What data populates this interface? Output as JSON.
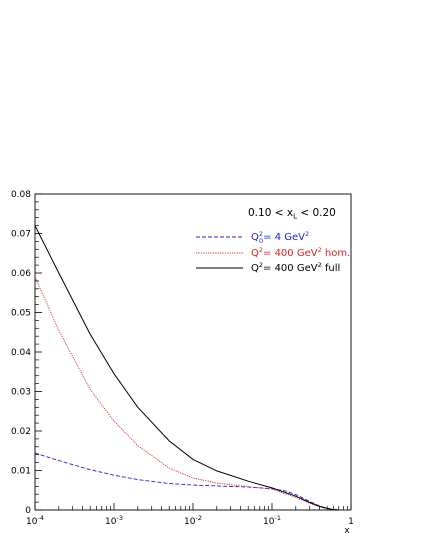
{
  "chart_data": {
    "type": "line",
    "header": {
      "prefix": "0.10 < x",
      "sub": "L",
      "suffix": " < 0.20"
    },
    "xlabel": "x",
    "ylabel": "",
    "x_scale": "log",
    "xlim": [
      0.0001,
      1
    ],
    "ylim": [
      0,
      0.08
    ],
    "grid": false,
    "legend_position": "top-right",
    "x_ticks": [
      {
        "value": 0.0001,
        "base": "10",
        "exp": "-4"
      },
      {
        "value": 0.001,
        "base": "10",
        "exp": "-3"
      },
      {
        "value": 0.01,
        "base": "10",
        "exp": "-2"
      },
      {
        "value": 0.1,
        "base": "10",
        "exp": "-1"
      },
      {
        "value": 1,
        "base": "1",
        "exp": ""
      }
    ],
    "y_ticks": [
      {
        "value": 0,
        "label": "0"
      },
      {
        "value": 0.01,
        "label": "0.01"
      },
      {
        "value": 0.02,
        "label": "0.02"
      },
      {
        "value": 0.03,
        "label": "0.03"
      },
      {
        "value": 0.04,
        "label": "0.04"
      },
      {
        "value": 0.05,
        "label": "0.05"
      },
      {
        "value": 0.06,
        "label": "0.06"
      },
      {
        "value": 0.07,
        "label": "0.07"
      },
      {
        "value": 0.08,
        "label": "0.08"
      }
    ],
    "series": [
      {
        "legend": {
          "q": "Q",
          "qsup": "2",
          "qsub": "0",
          "rest": "= 4 GeV",
          "restsup": "2",
          "tail": ""
        },
        "color": "#2222dd",
        "style": "dashed",
        "x": [
          0.0001,
          0.0002,
          0.0005,
          0.001,
          0.002,
          0.005,
          0.01,
          0.02,
          0.05,
          0.1,
          0.15,
          0.2,
          0.3,
          0.4,
          0.5,
          0.6,
          0.7
        ],
        "y": [
          0.0144,
          0.0125,
          0.0102,
          0.0088,
          0.0077,
          0.0067,
          0.0063,
          0.0061,
          0.0058,
          0.0054,
          0.0048,
          0.0039,
          0.0022,
          0.001,
          0.0004,
          0.0001,
          0.0
        ]
      },
      {
        "legend": {
          "q": "Q",
          "qsup": "2",
          "qsub": "",
          "rest": "= 400 GeV",
          "restsup": "2",
          "tail": " hom."
        },
        "color": "#dd2222",
        "style": "dotted",
        "x": [
          0.0001,
          0.0002,
          0.0005,
          0.001,
          0.002,
          0.005,
          0.01,
          0.02,
          0.05,
          0.1,
          0.2,
          0.3,
          0.4,
          0.5,
          0.6,
          0.7
        ],
        "y": [
          0.059,
          0.0455,
          0.0305,
          0.0225,
          0.0163,
          0.0106,
          0.0081,
          0.0068,
          0.0059,
          0.0053,
          0.0032,
          0.0017,
          0.0008,
          0.0003,
          0.0001,
          0.0
        ]
      },
      {
        "legend": {
          "q": "Q",
          "qsup": "2",
          "qsub": "",
          "rest": "= 400 GeV",
          "restsup": "2",
          "tail": " full"
        },
        "color": "#000000",
        "style": "solid",
        "x": [
          0.0001,
          0.0002,
          0.0005,
          0.001,
          0.002,
          0.005,
          0.01,
          0.02,
          0.05,
          0.1,
          0.2,
          0.3,
          0.4,
          0.5,
          0.6,
          0.7
        ],
        "y": [
          0.072,
          0.06,
          0.0445,
          0.0345,
          0.026,
          0.0175,
          0.0128,
          0.0099,
          0.0073,
          0.0056,
          0.0035,
          0.0019,
          0.0009,
          0.0004,
          0.0001,
          0.0
        ]
      }
    ]
  }
}
